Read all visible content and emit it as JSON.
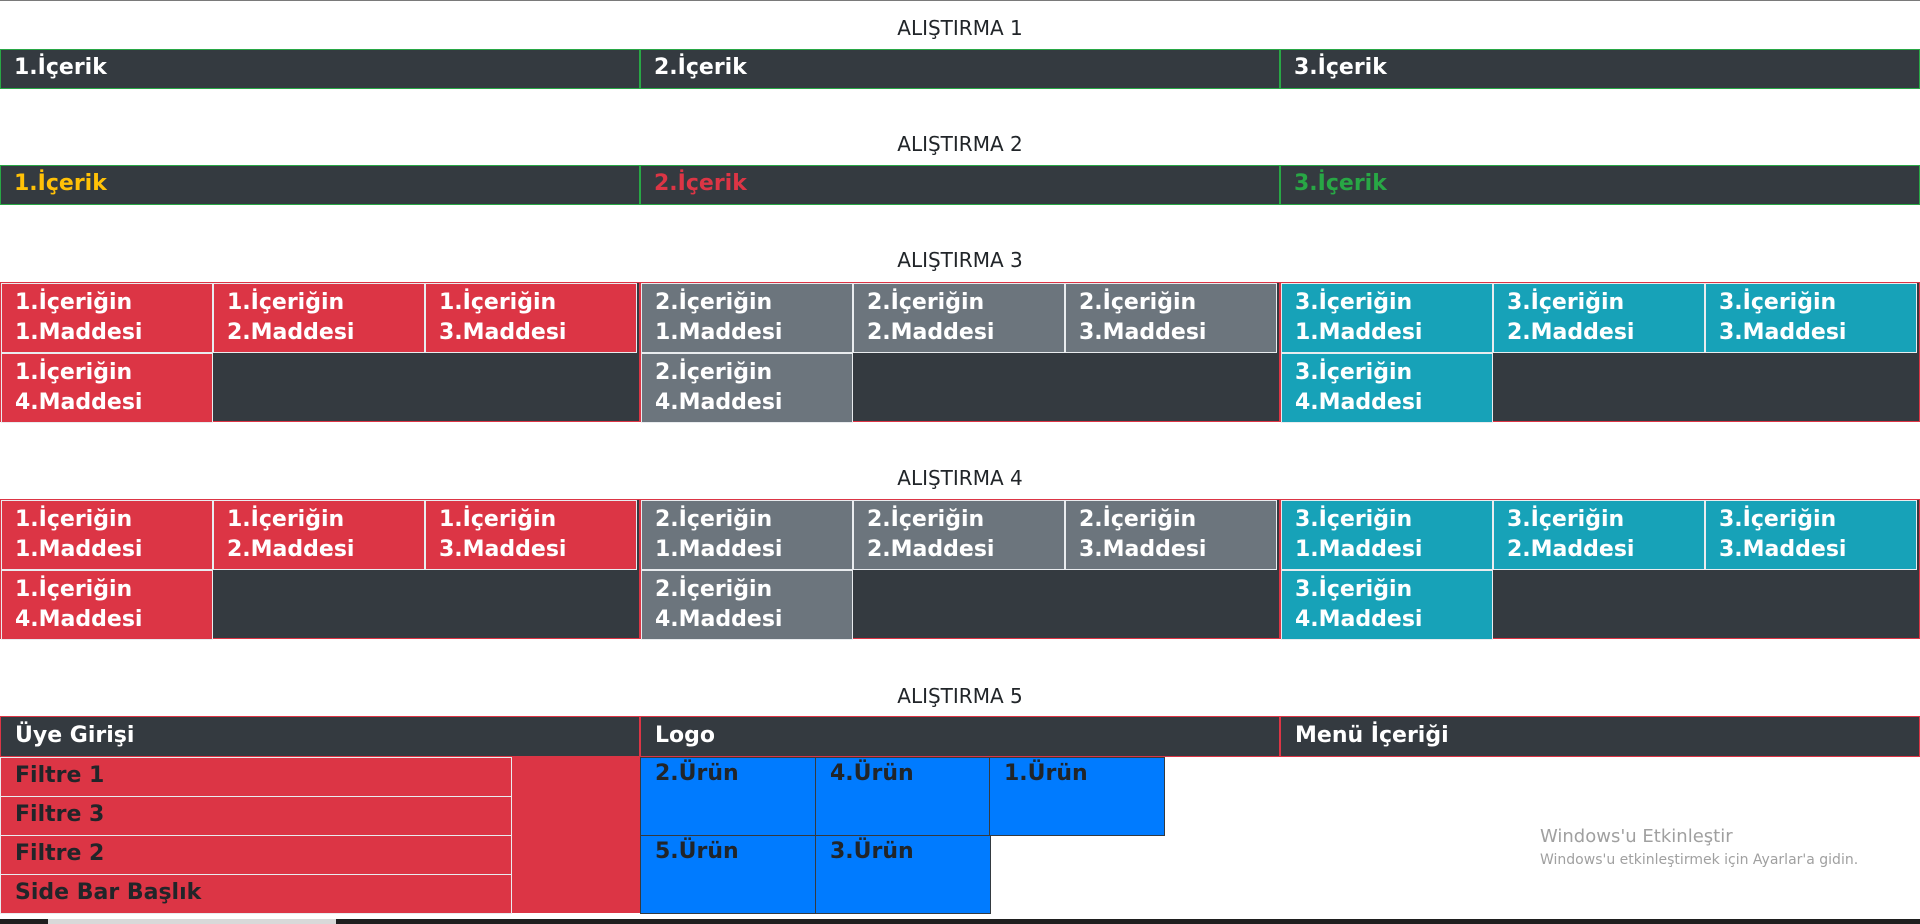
{
  "exercises": {
    "e1": {
      "title": "ALIŞTIRMA 1",
      "cells": [
        "1.İçerik",
        "2.İçerik",
        "3.İçerik"
      ]
    },
    "e2": {
      "title": "ALIŞTIRMA 2",
      "cells": [
        "1.İçerik",
        "2.İçerik",
        "3.İçerik"
      ],
      "colors": [
        "#ffc107",
        "#dc3545",
        "#28a745"
      ]
    },
    "e3": {
      "title": "ALIŞTIRMA 3",
      "groups": [
        {
          "items": [
            "1.İçeriğin\n1.Maddesi",
            "1.İçeriğin\n2.Maddesi",
            "1.İçeriğin\n3.Maddesi",
            "1.İçeriğin\n4.Maddesi"
          ]
        },
        {
          "items": [
            "2.İçeriğin\n1.Maddesi",
            "2.İçeriğin\n2.Maddesi",
            "2.İçeriğin\n3.Maddesi",
            "2.İçeriğin\n4.Maddesi"
          ]
        },
        {
          "items": [
            "3.İçeriğin\n1.Maddesi",
            "3.İçeriğin\n2.Maddesi",
            "3.İçeriğin\n3.Maddesi",
            "3.İçeriğin\n4.Maddesi"
          ]
        }
      ]
    },
    "e4": {
      "title": "ALIŞTIRMA 4",
      "groups": [
        {
          "items": [
            "1.İçeriğin\n1.Maddesi",
            "1.İçeriğin\n2.Maddesi",
            "1.İçeriğin\n3.Maddesi",
            "1.İçeriğin\n4.Maddesi"
          ]
        },
        {
          "items": [
            "2.İçeriğin\n1.Maddesi",
            "2.İçeriğin\n2.Maddesi",
            "2.İçeriğin\n3.Maddesi",
            "2.İçeriğin\n4.Maddesi"
          ]
        },
        {
          "items": [
            "3.İçeriğin\n1.Maddesi",
            "3.İçeriğin\n2.Maddesi",
            "3.İçeriğin\n3.Maddesi",
            "3.İçeriğin\n4.Maddesi"
          ]
        }
      ]
    },
    "e5": {
      "title": "ALIŞTIRMA 5",
      "headers": [
        "Üye Girişi",
        "Logo",
        "Menü İçeriği"
      ],
      "filters": [
        "Filtre 1",
        "Filtre 3",
        "Filtre 2",
        "Side Bar Başlık"
      ],
      "products": [
        "2.Ürün",
        "4.Ürün",
        "1.Ürün",
        "5.Ürün",
        "3.Ürün"
      ]
    }
  },
  "watermark": {
    "title": "Windows'u Etkinleştir",
    "subtitle": "Windows'u etkinleştirmek için Ayarlar'a gidin."
  }
}
